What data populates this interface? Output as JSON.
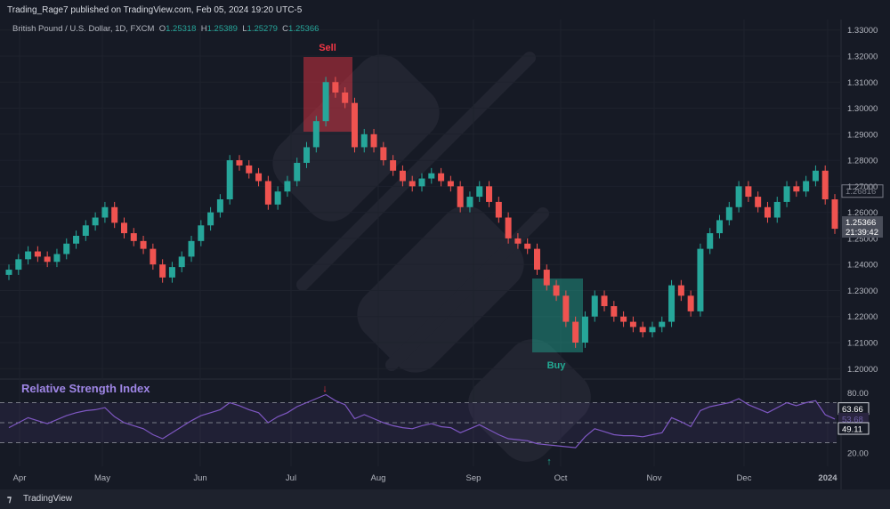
{
  "header": {
    "published": "Trading_Rage7 published on TradingView.com, Feb 05, 2024 19:20 UTC-5"
  },
  "legend": {
    "symbol": "British Pound / U.S. Dollar, 1D, FXCM",
    "o_label": "O",
    "o": "1.25318",
    "h_label": "H",
    "h": "1.25389",
    "l_label": "L",
    "l": "1.25279",
    "c_label": "C",
    "c": "1.25366"
  },
  "annotations": {
    "sell": "Sell",
    "buy": "Buy"
  },
  "rsi": {
    "title": "Relative Strength Index",
    "labels": {
      "v1": "63.66",
      "v2": "53.68",
      "v3": "49.11"
    }
  },
  "price_labels": {
    "ref": "1.26816",
    "last": "1.25366",
    "countdown": "21:39:42"
  },
  "footer": {
    "brand": "TradingView"
  },
  "colors": {
    "up": "#26a69a",
    "down": "#ef5350",
    "rsi": "#7e57c2",
    "sell_box": "#f23645",
    "buy_box": "#22ab94"
  },
  "chart_data": [
    {
      "type": "candlestick",
      "title": "",
      "x_ticks": [
        "Apr",
        "May",
        "Jun",
        "Jul",
        "Aug",
        "Sep",
        "Oct",
        "Nov",
        "Dec",
        "2024"
      ],
      "y_ticks": [
        "1.33000",
        "1.32000",
        "1.31000",
        "1.30000",
        "1.29000",
        "1.28000",
        "1.27000",
        "1.26000",
        "1.25000",
        "1.24000",
        "1.23000",
        "1.22000",
        "1.21000",
        "1.20000"
      ],
      "ylim": [
        1.196,
        1.334
      ],
      "closes": [
        1.238,
        1.242,
        1.245,
        1.243,
        1.241,
        1.244,
        1.248,
        1.251,
        1.255,
        1.258,
        1.262,
        1.256,
        1.252,
        1.249,
        1.246,
        1.24,
        1.235,
        1.239,
        1.243,
        1.249,
        1.255,
        1.26,
        1.265,
        1.28,
        1.278,
        1.275,
        1.272,
        1.263,
        1.268,
        1.272,
        1.279,
        1.285,
        1.295,
        1.31,
        1.306,
        1.302,
        1.285,
        1.29,
        1.285,
        1.28,
        1.276,
        1.272,
        1.27,
        1.273,
        1.275,
        1.272,
        1.27,
        1.262,
        1.266,
        1.27,
        1.264,
        1.258,
        1.25,
        1.248,
        1.246,
        1.238,
        1.232,
        1.228,
        1.218,
        1.21,
        1.22,
        1.228,
        1.224,
        1.22,
        1.218,
        1.216,
        1.214,
        1.216,
        1.218,
        1.232,
        1.228,
        1.222,
        1.246,
        1.252,
        1.257,
        1.262,
        1.27,
        1.266,
        1.262,
        1.258,
        1.264,
        1.27,
        1.268,
        1.272,
        1.276,
        1.265,
        1.2537
      ],
      "rsi_values": [
        45,
        50,
        55,
        52,
        49,
        53,
        57,
        60,
        62,
        63,
        65,
        56,
        50,
        47,
        44,
        38,
        34,
        40,
        46,
        52,
        57,
        60,
        63,
        70,
        67,
        63,
        60,
        50,
        56,
        60,
        66,
        70,
        74,
        78,
        72,
        68,
        54,
        58,
        54,
        50,
        47,
        45,
        44,
        47,
        49,
        46,
        45,
        40,
        44,
        48,
        43,
        38,
        34,
        33,
        32,
        29,
        28,
        27,
        26,
        25,
        36,
        44,
        41,
        38,
        37,
        37,
        36,
        38,
        40,
        55,
        51,
        46,
        62,
        66,
        68,
        70,
        74,
        68,
        64,
        60,
        65,
        70,
        67,
        70,
        72,
        58,
        53.68
      ],
      "rsi_ylim": [
        10,
        90
      ],
      "rsi_bands": [
        70,
        30
      ],
      "rsi_ticks": [
        "80.00",
        "20.00"
      ]
    }
  ]
}
